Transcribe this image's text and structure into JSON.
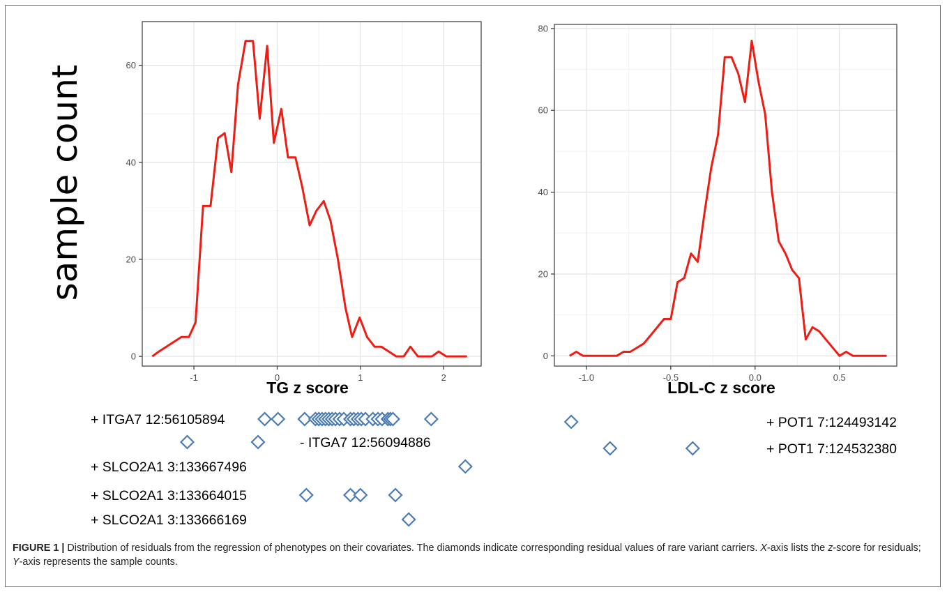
{
  "y_axis_title": "sample count",
  "chart_data": [
    {
      "type": "line",
      "xlabel": "TG z score",
      "xlim": [
        -1.62,
        2.45
      ],
      "ylim": [
        -2,
        69
      ],
      "x_ticks": [
        -1,
        0,
        1,
        2
      ],
      "x_tick_labels": [
        "-1",
        "0",
        "1",
        "2"
      ],
      "y_ticks": [
        0,
        20,
        40,
        60
      ],
      "y_tick_labels": [
        "0",
        "20",
        "40",
        "60"
      ],
      "grid": true,
      "line_color": "#ee1c12",
      "series": [
        {
          "x": [
            -1.5,
            -1.42,
            -1.33,
            -1.24,
            -1.15,
            -1.06,
            -0.98,
            -0.89,
            -0.8,
            -0.71,
            -0.63,
            -0.55,
            -0.47,
            -0.38,
            -0.29,
            -0.21,
            -0.12,
            -0.04,
            0.05,
            0.13,
            0.22,
            0.3,
            0.39,
            0.47,
            0.56,
            0.64,
            0.73,
            0.82,
            0.9,
            0.99,
            1.08,
            1.17,
            1.25,
            1.34,
            1.43,
            1.52,
            1.6,
            1.69,
            1.77,
            1.86,
            1.94,
            2.03,
            2.11,
            2.2,
            2.28
          ],
          "y": [
            0,
            1,
            2,
            3,
            4,
            4,
            7,
            31,
            31,
            45,
            46,
            38,
            56,
            65,
            65,
            49,
            64,
            44,
            51,
            41,
            41,
            35,
            27,
            30,
            32,
            28,
            20,
            10,
            4,
            8,
            4,
            2,
            2,
            1,
            0,
            0,
            2,
            0,
            0,
            0,
            1,
            0,
            0,
            0,
            0
          ]
        }
      ]
    },
    {
      "type": "line",
      "xlabel": "LDL-C z score",
      "xlim": [
        -1.19,
        0.84
      ],
      "ylim": [
        -2.5,
        81
      ],
      "x_ticks": [
        -1,
        -0.5,
        0,
        0.5
      ],
      "x_tick_labels": [
        "-1.0",
        "-0.5",
        "0.0",
        "0.5"
      ],
      "y_ticks": [
        0,
        20,
        40,
        60,
        80
      ],
      "y_tick_labels": [
        "0",
        "20",
        "40",
        "60",
        "80"
      ],
      "grid": true,
      "line_color": "#ee1c12",
      "series": [
        {
          "x": [
            -1.1,
            -1.06,
            -1.02,
            -0.98,
            -0.94,
            -0.9,
            -0.86,
            -0.82,
            -0.78,
            -0.74,
            -0.7,
            -0.66,
            -0.62,
            -0.58,
            -0.54,
            -0.5,
            -0.46,
            -0.42,
            -0.38,
            -0.34,
            -0.3,
            -0.26,
            -0.22,
            -0.18,
            -0.14,
            -0.1,
            -0.06,
            -0.02,
            0.02,
            0.06,
            0.1,
            0.14,
            0.18,
            0.22,
            0.26,
            0.3,
            0.34,
            0.38,
            0.42,
            0.46,
            0.5,
            0.54,
            0.58,
            0.62,
            0.66,
            0.7,
            0.74,
            0.78
          ],
          "y": [
            0,
            1,
            0,
            0,
            0,
            0,
            0,
            0,
            1,
            1,
            2,
            3,
            5,
            7,
            9,
            9,
            18,
            19,
            25,
            23,
            35,
            46,
            54,
            73,
            73,
            69,
            62,
            77,
            67,
            59,
            40,
            28,
            25,
            21,
            19,
            4,
            7,
            6,
            4,
            2,
            0,
            1,
            0,
            0,
            0,
            0,
            0,
            0
          ]
        }
      ]
    }
  ],
  "carrier_rows": [
    {
      "panel": 0,
      "label": "+ ITGA7 12:56105894",
      "values": [
        -0.15,
        0.01,
        0.33,
        0.46,
        0.5,
        0.54,
        0.58,
        0.62,
        0.66,
        0.7,
        0.75,
        0.8,
        0.88,
        0.92,
        0.97,
        1.01,
        1.06,
        1.15,
        1.21,
        1.26,
        1.33,
        1.36,
        1.39,
        1.85
      ]
    },
    {
      "panel": 0,
      "label": "- ITGA7 12:56094886",
      "values": [
        -1.08,
        -0.23
      ]
    },
    {
      "panel": 0,
      "label": "+ SLCO2A1 3:133667496",
      "values": [
        2.26
      ]
    },
    {
      "panel": 0,
      "label": "+ SLCO2A1 3:133664015",
      "values": [
        0.35,
        0.88,
        1.0,
        1.42
      ]
    },
    {
      "panel": 0,
      "label": "+ SLCO2A1 3:133666169",
      "values": [
        1.58
      ]
    },
    {
      "panel": 1,
      "label": "+ POT1 7:124493142",
      "values": [
        -1.09
      ]
    },
    {
      "panel": 1,
      "label": "+ POT1 7:124532380",
      "values": [
        -0.86,
        -0.37
      ]
    }
  ],
  "marker_color": "#4a7cb3",
  "caption": {
    "label": "FIGURE 1 |",
    "text_1": " Distribution of residuals from the regression of phenotypes on their covariates. The diamonds indicate corresponding residual values of rare variant carriers. ",
    "x_italic": "X",
    "text_2": "-axis lists the ",
    "z_italic": "z",
    "text_3": "-score for residuals; ",
    "y_italic": "Y",
    "text_4": "-axis represents the sample counts."
  }
}
